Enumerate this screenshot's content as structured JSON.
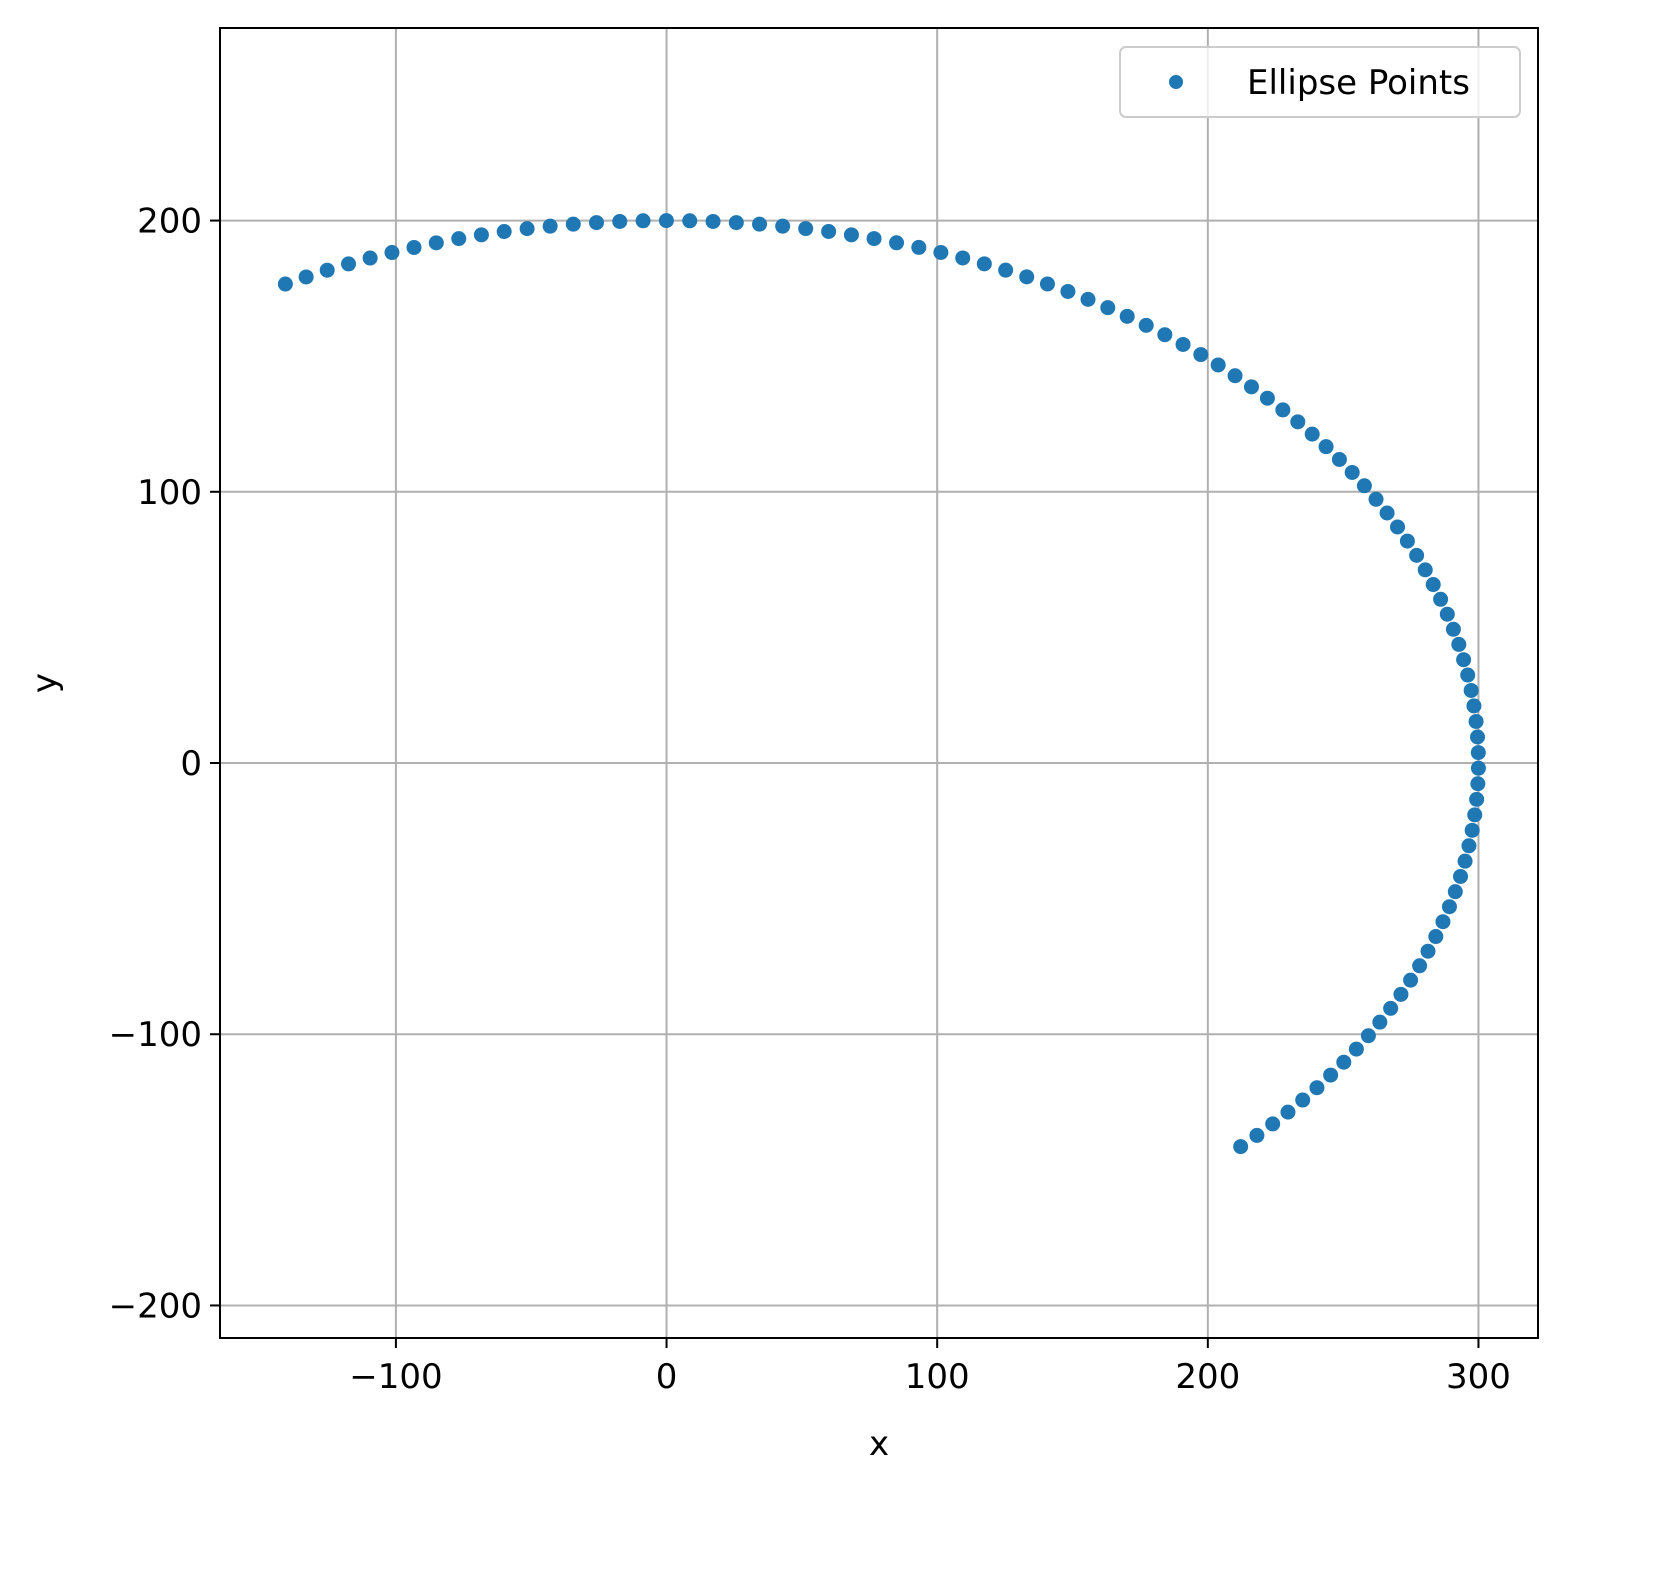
{
  "chart_data": {
    "type": "scatter",
    "title": "",
    "xlabel": "x",
    "ylabel": "y",
    "xlim": [
      -165,
      322
    ],
    "ylim": [
      -212,
      271
    ],
    "xticks": [
      -100,
      0,
      100,
      200,
      300
    ],
    "yticks": [
      -200,
      -100,
      0,
      100,
      200
    ],
    "xtick_labels": [
      "−100",
      "0",
      "100",
      "200",
      "300"
    ],
    "ytick_labels": [
      "−200",
      "−100",
      "0",
      "100",
      "200"
    ],
    "grid": true,
    "legend_position": "top-right",
    "series": [
      {
        "name": "Ellipse Points",
        "color": "#1f77b4",
        "marker": "circle",
        "shape": "ellipse arc",
        "a": 300,
        "b": 200,
        "t_start_deg": -45,
        "t_end_deg": 118,
        "n_points": 100
      }
    ]
  }
}
